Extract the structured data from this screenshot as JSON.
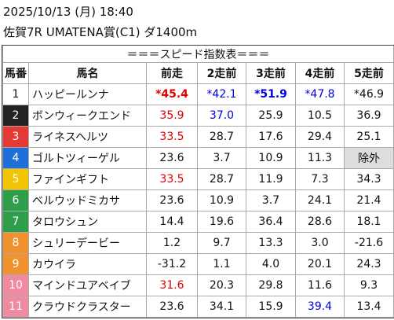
{
  "header": {
    "datetime": "2025/10/13 (月) 18:40",
    "race": "佐賀7R UMATENA賞(C1) ダ1400m"
  },
  "table": {
    "title": "＝＝＝スピード指数表＝＝＝",
    "columns": [
      "馬番",
      "馬名",
      "前走",
      "2走前",
      "3走前",
      "4走前",
      "5走前"
    ],
    "rows": [
      [
        "1",
        "ハッピールンナ",
        "*45.4",
        "*42.1",
        "*51.9",
        "*47.8",
        "*46.9"
      ],
      [
        "2",
        "ボンウィークエンド",
        "35.9",
        "37.0",
        "25.9",
        "10.5",
        "36.9"
      ],
      [
        "3",
        "ライネスヘルツ",
        "33.5",
        "28.7",
        "17.6",
        "29.4",
        "25.1"
      ],
      [
        "4",
        "ゴルトツィーゲル",
        "23.6",
        "3.7",
        "10.9",
        "11.3",
        "除外"
      ],
      [
        "5",
        "ファインギフト",
        "33.5",
        "28.7",
        "11.9",
        "7.3",
        "34.3"
      ],
      [
        "6",
        "ベルウッドミカサ",
        "23.6",
        "10.9",
        "3.7",
        "24.1",
        "21.4"
      ],
      [
        "7",
        "タロウシュン",
        "14.4",
        "19.6",
        "36.4",
        "28.6",
        "18.1"
      ],
      [
        "8",
        "シュリーデービー",
        "1.2",
        "9.7",
        "13.3",
        "3.0",
        "-21.6"
      ],
      [
        "9",
        "カウイラ",
        "-31.2",
        "1.1",
        "4.0",
        "20.1",
        "24.3"
      ],
      [
        "10",
        "マインドユアベイブ",
        "31.6",
        "20.3",
        "29.8",
        "11.6",
        "9.3"
      ],
      [
        "11",
        "クラウドクラスター",
        "23.6",
        "34.1",
        "15.9",
        "39.4",
        "13.4"
      ]
    ]
  }
}
